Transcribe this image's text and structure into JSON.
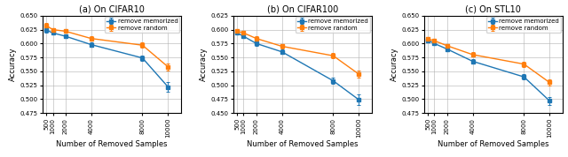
{
  "chart_data": [
    {
      "type": "line",
      "title": "(a) On CIFAR10",
      "xlabel": "Number of Removed Samples",
      "ylabel": "Accuracy",
      "x": [
        500,
        1000,
        2000,
        4000,
        8000,
        10000
      ],
      "xlim": [
        200,
        11000
      ],
      "xticks": [
        500,
        1000,
        2000,
        4000,
        8000,
        10000
      ],
      "ylim": [
        0.475,
        0.65
      ],
      "yticks": [
        0.475,
        {
          "value": 0.5,
          "label": "0.500"
        },
        0.525,
        {
          "value": 0.55,
          "label": "0.550"
        },
        0.575,
        {
          "value": 0.6,
          "label": "0.600"
        },
        0.625,
        {
          "value": 0.65,
          "label": "0.650"
        }
      ],
      "grid": true,
      "legend": "upper right",
      "series": [
        {
          "name": "remove memorized",
          "color": "#1f77b4",
          "marker": "square",
          "values": [
            0.624,
            0.619,
            0.613,
            0.598,
            0.574,
            0.522
          ],
          "errors": [
            0.004,
            0.003,
            0.003,
            0.004,
            0.005,
            0.008
          ]
        },
        {
          "name": "remove random",
          "color": "#ff7f0e",
          "marker": "square",
          "values": [
            0.632,
            0.625,
            0.622,
            0.609,
            0.597,
            0.558
          ],
          "errors": [
            0.005,
            0.003,
            0.003,
            0.004,
            0.005,
            0.006
          ]
        }
      ]
    },
    {
      "type": "line",
      "title": "(b) On CIFAR100",
      "xlabel": "Number of Removed Samples",
      "ylabel": "Accuracy",
      "x": [
        500,
        1000,
        2000,
        4000,
        8000,
        10000
      ],
      "xlim": [
        200,
        11000
      ],
      "xticks": [
        500,
        1000,
        2000,
        4000,
        8000,
        10000
      ],
      "ylim": [
        0.45,
        0.625
      ],
      "yticks": [
        {
          "value": 0.45,
          "label": "0.450"
        },
        0.475,
        {
          "value": 0.5,
          "label": "0.500"
        },
        0.525,
        {
          "value": 0.55,
          "label": "0.550"
        },
        0.575,
        {
          "value": 0.6,
          "label": "0.600"
        },
        0.625
      ],
      "grid": true,
      "legend": "upper right",
      "series": [
        {
          "name": "remove memorized",
          "color": "#1f77b4",
          "marker": "square",
          "values": [
            0.594,
            0.588,
            0.575,
            0.56,
            0.508,
            0.474
          ],
          "errors": [
            0.003,
            0.003,
            0.004,
            0.004,
            0.006,
            0.01
          ]
        },
        {
          "name": "remove random",
          "color": "#ff7f0e",
          "marker": "square",
          "values": [
            0.597,
            0.594,
            0.584,
            0.57,
            0.553,
            0.52
          ],
          "errors": [
            0.004,
            0.003,
            0.004,
            0.004,
            0.005,
            0.007
          ]
        }
      ]
    },
    {
      "type": "line",
      "title": "(c) On STL10",
      "xlabel": "Number of Removed Samples",
      "ylabel": "Accuracy",
      "x": [
        500,
        1000,
        2000,
        4000,
        8000,
        10000
      ],
      "xlim": [
        200,
        11000
      ],
      "xticks": [
        500,
        1000,
        2000,
        4000,
        8000,
        10000
      ],
      "ylim": [
        0.475,
        0.65
      ],
      "yticks": [
        0.475,
        {
          "value": 0.5,
          "label": "0.500"
        },
        0.525,
        {
          "value": 0.55,
          "label": "0.550"
        },
        0.575,
        {
          "value": 0.6,
          "label": "0.600"
        },
        0.625,
        {
          "value": 0.65,
          "label": "0.650"
        }
      ],
      "grid": true,
      "legend": "upper right",
      "series": [
        {
          "name": "remove memorized",
          "color": "#1f77b4",
          "marker": "square",
          "values": [
            0.606,
            0.6,
            0.59,
            0.568,
            0.54,
            0.497
          ],
          "errors": [
            0.003,
            0.003,
            0.003,
            0.004,
            0.005,
            0.007
          ]
        },
        {
          "name": "remove random",
          "color": "#ff7f0e",
          "marker": "square",
          "values": [
            0.608,
            0.605,
            0.596,
            0.58,
            0.563,
            0.53
          ],
          "errors": [
            0.004,
            0.003,
            0.003,
            0.004,
            0.005,
            0.006
          ]
        }
      ]
    }
  ]
}
